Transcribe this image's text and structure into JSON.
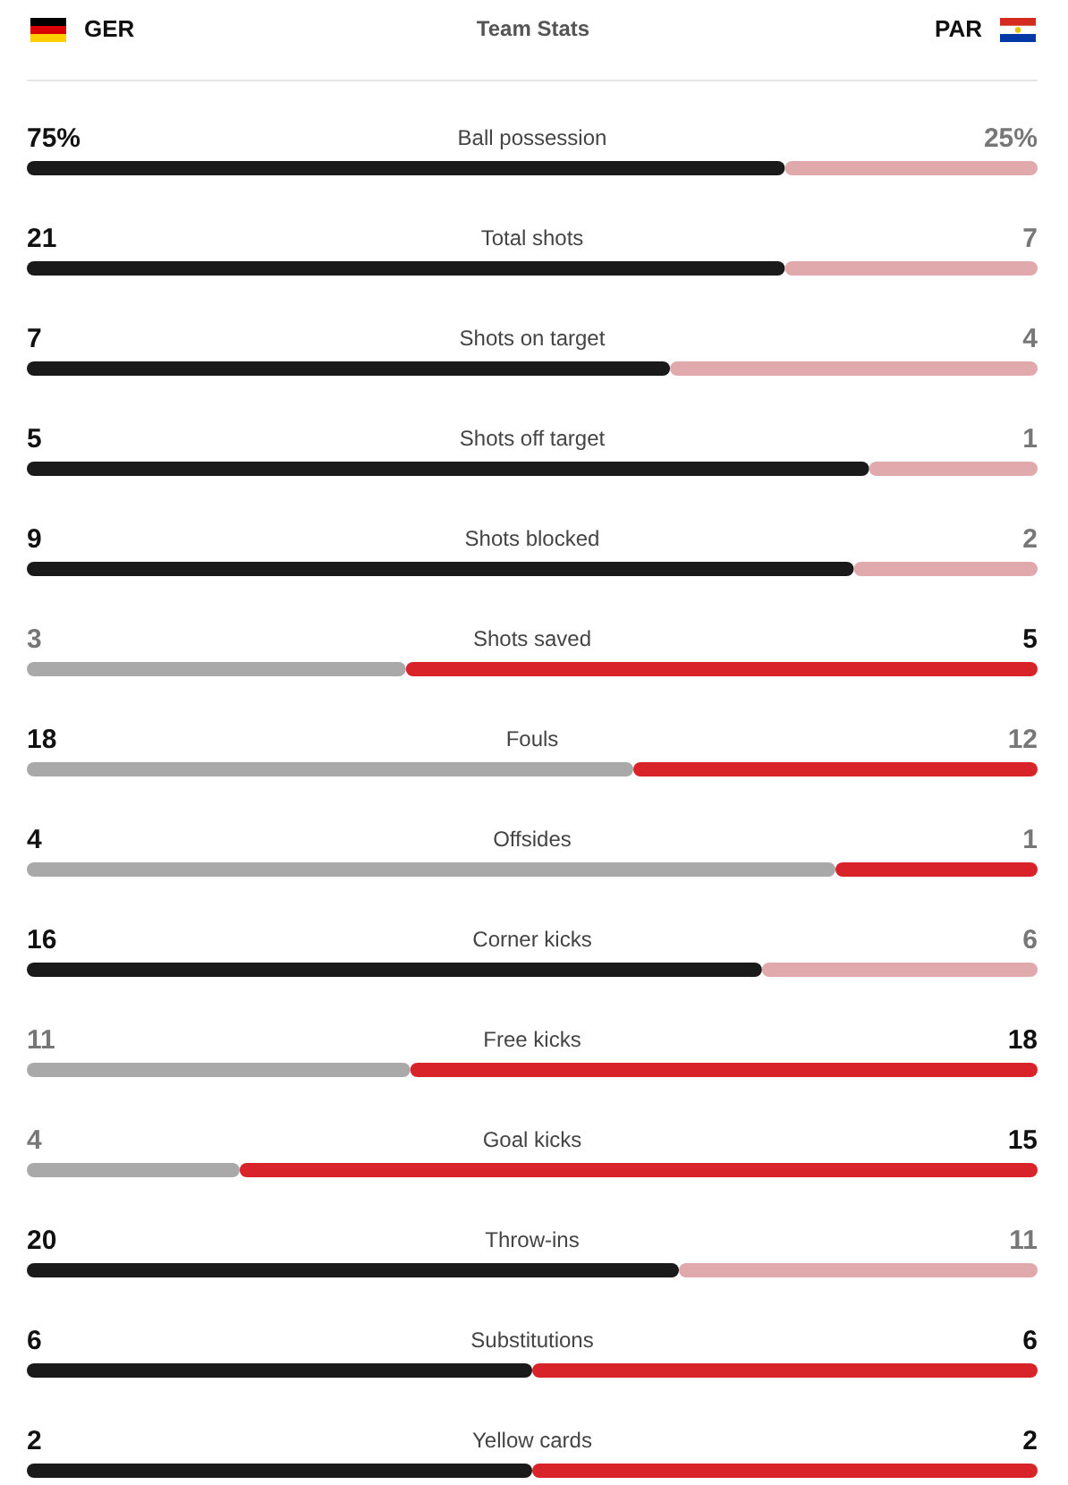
{
  "chart_data": [
    {
      "type": "other",
      "title": "Team Stats",
      "annotations": [
        "GER",
        "PAR"
      ]
    },
    {
      "type": "bar",
      "categories": [
        "Ball possession"
      ],
      "orientation": "horizontal",
      "stacked": true,
      "tick_labels": "y",
      "series": [
        {
          "color": "#1a1a1a",
          "values": [
            75
          ],
          "value_labels": [
            "75%"
          ]
        },
        {
          "color": "#e0a9ab",
          "values": [
            25
          ],
          "value_labels": [
            "25%"
          ]
        }
      ]
    },
    {
      "type": "bar",
      "categories": [
        "Total shots"
      ],
      "orientation": "horizontal",
      "stacked": true,
      "tick_labels": "y",
      "data_labels": true,
      "series": [
        {
          "color": "#1a1a1a",
          "values": [
            21
          ]
        },
        {
          "color": "#e0a9ab",
          "values": [
            7
          ]
        }
      ]
    },
    {
      "type": "bar",
      "categories": [
        "Shots on target"
      ],
      "orientation": "horizontal",
      "stacked": true,
      "tick_labels": "y",
      "data_labels": true,
      "series": [
        {
          "color": "#1a1a1a",
          "values": [
            7
          ]
        },
        {
          "color": "#e0a9ab",
          "values": [
            4
          ]
        }
      ]
    },
    {
      "type": "bar",
      "categories": [
        "Shots off target"
      ],
      "orientation": "horizontal",
      "stacked": true,
      "tick_labels": "y",
      "data_labels": true,
      "series": [
        {
          "color": "#1a1a1a",
          "values": [
            5
          ]
        },
        {
          "color": "#e0a9ab",
          "values": [
            1
          ]
        }
      ]
    },
    {
      "type": "bar",
      "categories": [
        "Shots blocked"
      ],
      "orientation": "horizontal",
      "stacked": true,
      "tick_labels": "y",
      "data_labels": true,
      "series": [
        {
          "color": "#1a1a1a",
          "values": [
            9
          ]
        },
        {
          "color": "#e0a9ab",
          "values": [
            2
          ]
        }
      ]
    },
    {
      "type": "bar",
      "categories": [
        "Shots saved"
      ],
      "orientation": "horizontal",
      "stacked": true,
      "tick_labels": "y",
      "data_labels": true,
      "series": [
        {
          "color": "#a9a9a9",
          "values": [
            3
          ]
        },
        {
          "color": "#d9232a",
          "values": [
            5
          ]
        }
      ]
    },
    {
      "type": "bar",
      "categories": [
        "Fouls"
      ],
      "orientation": "horizontal",
      "stacked": true,
      "tick_labels": "y",
      "data_labels": true,
      "series": [
        {
          "color": "#a9a9a9",
          "values": [
            18
          ]
        },
        {
          "color": "#d9232a",
          "values": [
            12
          ]
        }
      ]
    },
    {
      "type": "bar",
      "categories": [
        "Offsides"
      ],
      "orientation": "horizontal",
      "stacked": true,
      "tick_labels": "y",
      "data_labels": true,
      "series": [
        {
          "color": "#a9a9a9",
          "values": [
            4
          ]
        },
        {
          "color": "#d9232a",
          "values": [
            1
          ]
        }
      ]
    },
    {
      "type": "bar",
      "categories": [
        "Corner kicks"
      ],
      "orientation": "horizontal",
      "stacked": true,
      "tick_labels": "y",
      "data_labels": true,
      "series": [
        {
          "color": "#1a1a1a",
          "values": [
            16
          ]
        },
        {
          "color": "#e0a9ab",
          "values": [
            6
          ]
        }
      ]
    },
    {
      "type": "bar",
      "categories": [
        "Free kicks"
      ],
      "orientation": "horizontal",
      "stacked": true,
      "tick_labels": "y",
      "data_labels": true,
      "series": [
        {
          "color": "#a9a9a9",
          "values": [
            11
          ]
        },
        {
          "color": "#d9232a",
          "values": [
            18
          ]
        }
      ]
    },
    {
      "type": "bar",
      "categories": [
        "Goal kicks"
      ],
      "orientation": "horizontal",
      "stacked": true,
      "tick_labels": "y",
      "data_labels": true,
      "series": [
        {
          "color": "#a9a9a9",
          "values": [
            4
          ]
        },
        {
          "color": "#d9232a",
          "values": [
            15
          ]
        }
      ]
    },
    {
      "type": "bar",
      "categories": [
        "Throw-ins"
      ],
      "orientation": "horizontal",
      "stacked": true,
      "tick_labels": "y",
      "data_labels": true,
      "series": [
        {
          "color": "#1a1a1a",
          "values": [
            20
          ]
        },
        {
          "color": "#e0a9ab",
          "values": [
            11
          ]
        }
      ]
    },
    {
      "type": "bar",
      "categories": [
        "Substitutions"
      ],
      "orientation": "horizontal",
      "stacked": true,
      "tick_labels": "y",
      "data_labels": true,
      "series": [
        {
          "color": "#1a1a1a",
          "values": [
            6
          ]
        },
        {
          "color": "#d9232a",
          "values": [
            6
          ]
        }
      ]
    },
    {
      "type": "bar",
      "categories": [
        "Yellow cards"
      ],
      "orientation": "horizontal",
      "stacked": true,
      "tick_labels": "y",
      "data_labels": true,
      "series": [
        {
          "color": "#1a1a1a",
          "values": [
            2
          ]
        },
        {
          "color": "#d9232a",
          "values": [
            2
          ]
        }
      ]
    }
  ]
}
